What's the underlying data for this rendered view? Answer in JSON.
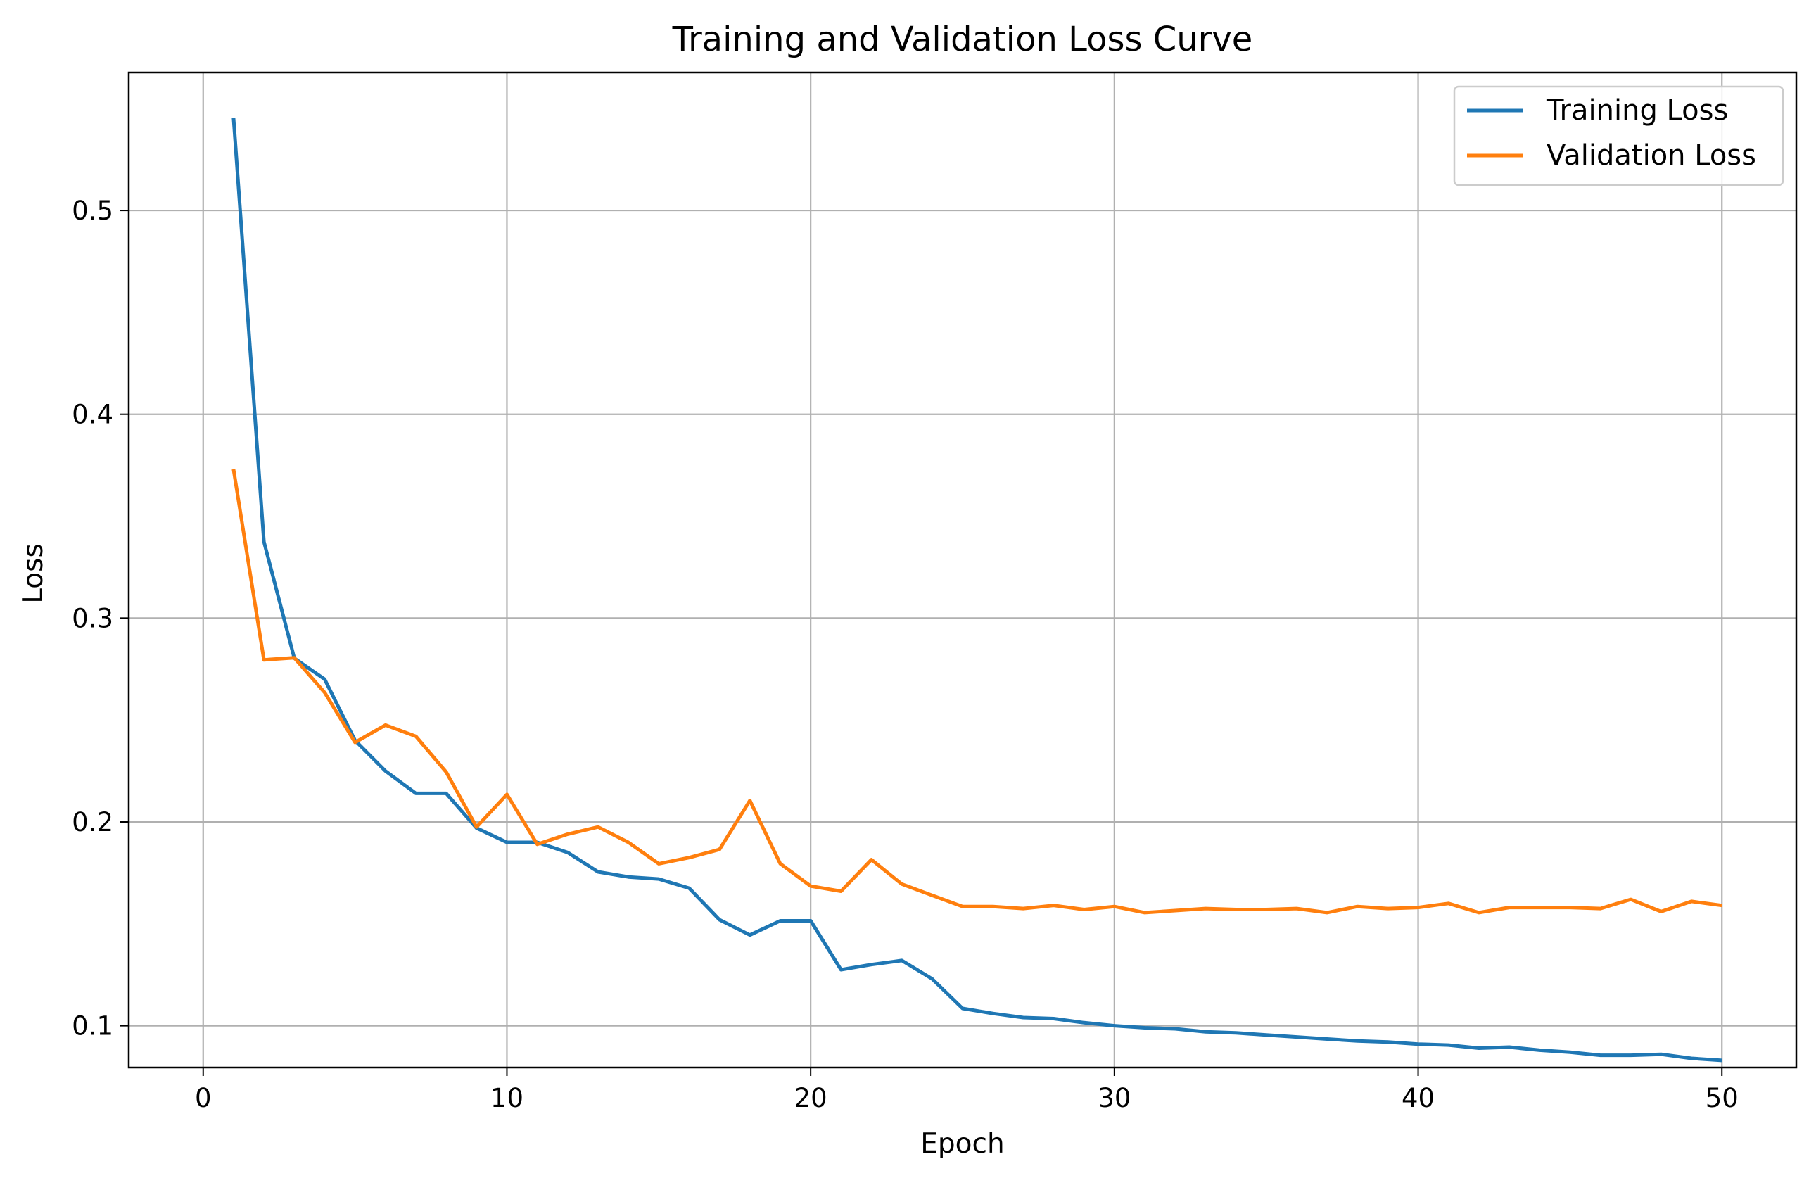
{
  "chart_data": {
    "type": "line",
    "title": "Training and Validation Loss Curve",
    "xlabel": "Epoch",
    "ylabel": "Loss",
    "xlim": [
      -2.45,
      52.45
    ],
    "ylim": [
      0.0795,
      0.5677
    ],
    "xticks": [
      0,
      10,
      20,
      30,
      40,
      50
    ],
    "yticks": [
      0.1,
      0.2,
      0.3,
      0.4,
      0.5
    ],
    "xtick_labels": [
      "0",
      "10",
      "20",
      "30",
      "40",
      "50"
    ],
    "ytick_labels": [
      "0.1",
      "0.2",
      "0.3",
      "0.4",
      "0.5"
    ],
    "grid": true,
    "legend_position": "top-right",
    "x": [
      1,
      2,
      3,
      4,
      5,
      6,
      7,
      8,
      9,
      10,
      11,
      12,
      13,
      14,
      15,
      16,
      17,
      18,
      19,
      20,
      21,
      22,
      23,
      24,
      25,
      26,
      27,
      28,
      29,
      30,
      31,
      32,
      33,
      34,
      35,
      36,
      37,
      38,
      39,
      40,
      41,
      42,
      43,
      44,
      45,
      46,
      47,
      48,
      49,
      50
    ],
    "series": [
      {
        "name": "Training Loss",
        "color": "#1f77b4",
        "values": [
          0.5455,
          0.3375,
          0.2803,
          0.27,
          0.24,
          0.225,
          0.214,
          0.214,
          0.197,
          0.19,
          0.19,
          0.185,
          0.1755,
          0.173,
          0.172,
          0.1675,
          0.152,
          0.1445,
          0.1515,
          0.1515,
          0.1275,
          0.13,
          0.132,
          0.123,
          0.1085,
          0.106,
          0.104,
          0.1035,
          0.1015,
          0.1,
          0.099,
          0.0985,
          0.097,
          0.0965,
          0.0955,
          0.0945,
          0.0935,
          0.0925,
          0.092,
          0.091,
          0.0905,
          0.089,
          0.0895,
          0.088,
          0.087,
          0.0855,
          0.0855,
          0.086,
          0.084,
          0.083
        ]
      },
      {
        "name": "Validation Loss",
        "color": "#ff7f0e",
        "values": [
          0.373,
          0.2795,
          0.2805,
          0.2635,
          0.239,
          0.2475,
          0.242,
          0.2245,
          0.1975,
          0.2135,
          0.189,
          0.194,
          0.1975,
          0.19,
          0.1795,
          0.1825,
          0.1865,
          0.2105,
          0.1795,
          0.1685,
          0.166,
          0.1815,
          0.1695,
          0.164,
          0.1585,
          0.1585,
          0.1575,
          0.159,
          0.157,
          0.1585,
          0.1555,
          0.1565,
          0.1575,
          0.157,
          0.157,
          0.1575,
          0.1555,
          0.1585,
          0.1575,
          0.158,
          0.16,
          0.1555,
          0.158,
          0.158,
          0.158,
          0.1575,
          0.162,
          0.156,
          0.161,
          0.159
        ]
      }
    ]
  }
}
